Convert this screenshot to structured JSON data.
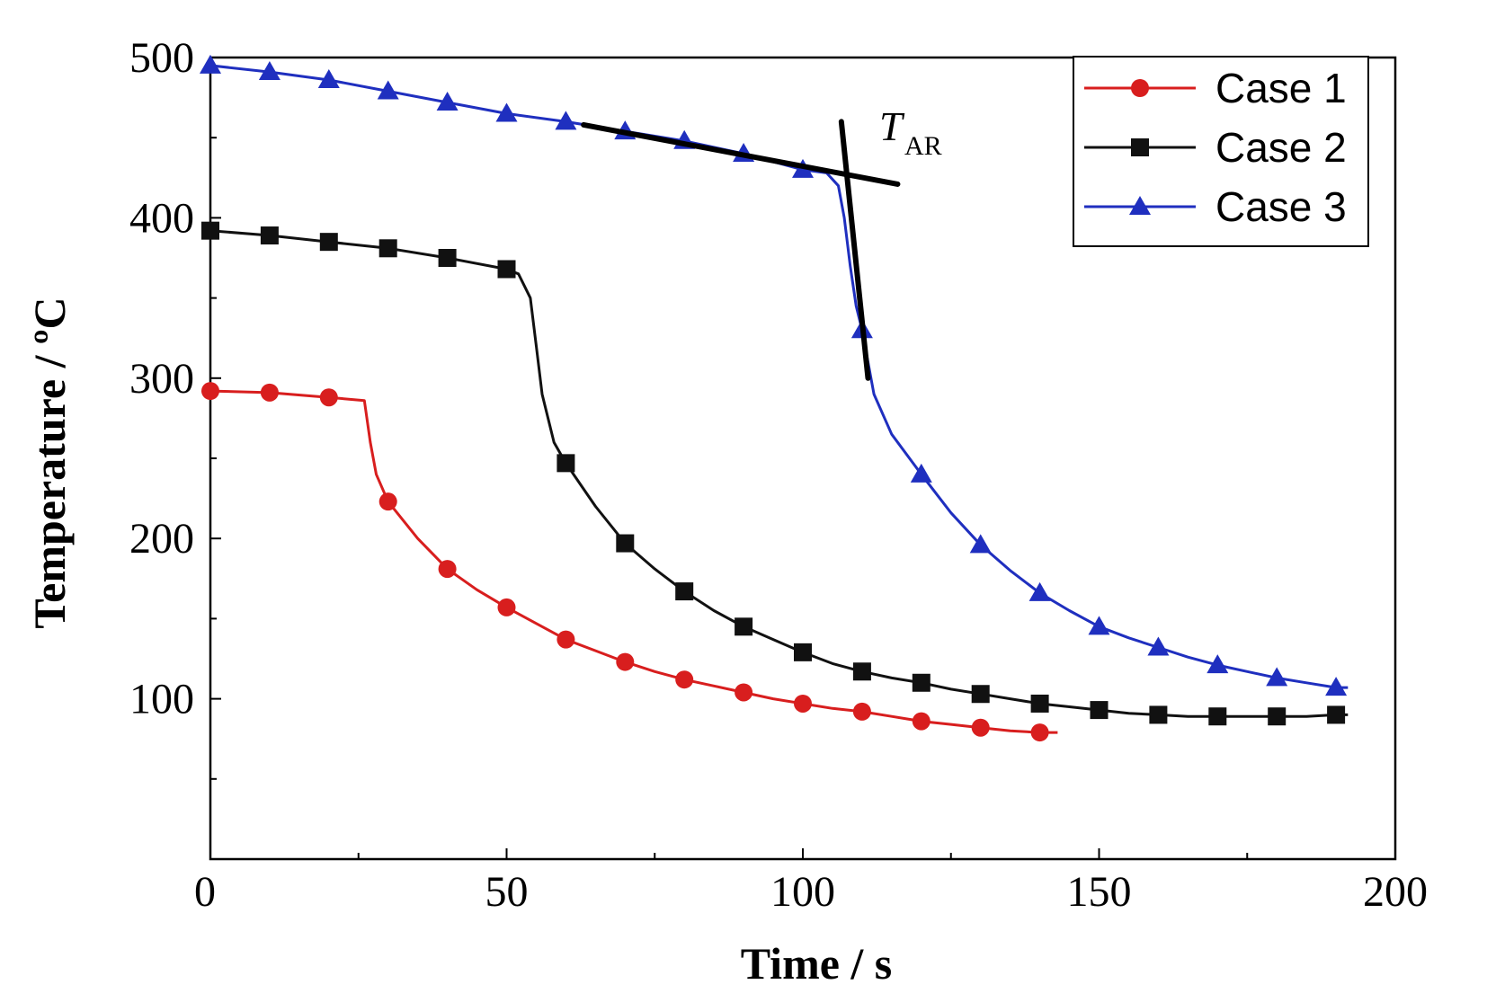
{
  "chart_data": {
    "type": "line",
    "title": "",
    "xlabel": "Time / s",
    "ylabel": "Temperature / ºC",
    "xlim": [
      0,
      200
    ],
    "ylim": [
      0,
      500
    ],
    "x_ticks": [
      0,
      50,
      100,
      150,
      200
    ],
    "y_ticks": [
      100,
      200,
      300,
      400,
      500
    ],
    "x_minor_step": 25,
    "y_minor_step": 50,
    "grid": false,
    "legend_position": "top-right",
    "annotation": {
      "text": "T",
      "subscript": "AR"
    },
    "tangent_lines": [
      [
        [
          63,
          458
        ],
        [
          116,
          421
        ]
      ],
      [
        [
          106.5,
          460
        ],
        [
          111,
          300
        ]
      ]
    ],
    "series": [
      {
        "name": "Case 1",
        "color": "#d81e1e",
        "marker": "circle",
        "markers_x": [
          0,
          10,
          20,
          30,
          40,
          50,
          60,
          70,
          80,
          90,
          100,
          110,
          120,
          130,
          140
        ],
        "points": [
          [
            0,
            292
          ],
          [
            10,
            291
          ],
          [
            20,
            288
          ],
          [
            26,
            286
          ],
          [
            27,
            260
          ],
          [
            28,
            240
          ],
          [
            30,
            223
          ],
          [
            35,
            200
          ],
          [
            40,
            181
          ],
          [
            45,
            168
          ],
          [
            50,
            157
          ],
          [
            55,
            147
          ],
          [
            60,
            137
          ],
          [
            65,
            130
          ],
          [
            70,
            123
          ],
          [
            75,
            117
          ],
          [
            80,
            112
          ],
          [
            85,
            108
          ],
          [
            90,
            104
          ],
          [
            95,
            100
          ],
          [
            100,
            97
          ],
          [
            105,
            94
          ],
          [
            110,
            92
          ],
          [
            115,
            89
          ],
          [
            120,
            86
          ],
          [
            125,
            84
          ],
          [
            130,
            82
          ],
          [
            135,
            80
          ],
          [
            140,
            79
          ],
          [
            143,
            79
          ]
        ]
      },
      {
        "name": "Case 2",
        "color": "#111111",
        "marker": "square",
        "markers_x": [
          0,
          10,
          20,
          30,
          40,
          50,
          60,
          70,
          80,
          90,
          100,
          110,
          120,
          130,
          140,
          150,
          160,
          170,
          180,
          190
        ],
        "points": [
          [
            0,
            392
          ],
          [
            10,
            389
          ],
          [
            20,
            385
          ],
          [
            30,
            381
          ],
          [
            40,
            375
          ],
          [
            50,
            368
          ],
          [
            52,
            365
          ],
          [
            54,
            350
          ],
          [
            55,
            320
          ],
          [
            56,
            290
          ],
          [
            58,
            260
          ],
          [
            60,
            247
          ],
          [
            65,
            220
          ],
          [
            70,
            197
          ],
          [
            75,
            181
          ],
          [
            80,
            167
          ],
          [
            85,
            155
          ],
          [
            90,
            145
          ],
          [
            95,
            137
          ],
          [
            100,
            129
          ],
          [
            105,
            122
          ],
          [
            110,
            117
          ],
          [
            115,
            113
          ],
          [
            120,
            110
          ],
          [
            125,
            106
          ],
          [
            130,
            103
          ],
          [
            135,
            100
          ],
          [
            140,
            97
          ],
          [
            145,
            95
          ],
          [
            150,
            93
          ],
          [
            155,
            91
          ],
          [
            160,
            90
          ],
          [
            165,
            89
          ],
          [
            170,
            89
          ],
          [
            175,
            89
          ],
          [
            180,
            89
          ],
          [
            185,
            89
          ],
          [
            190,
            90
          ],
          [
            192,
            90
          ]
        ]
      },
      {
        "name": "Case 3",
        "color": "#1f2fbf",
        "marker": "triangle",
        "markers_x": [
          0,
          10,
          20,
          30,
          40,
          50,
          60,
          70,
          80,
          90,
          100,
          110,
          120,
          130,
          140,
          150,
          160,
          170,
          180,
          190
        ],
        "points": [
          [
            0,
            495
          ],
          [
            10,
            491
          ],
          [
            20,
            486
          ],
          [
            30,
            479
          ],
          [
            40,
            472
          ],
          [
            50,
            465
          ],
          [
            60,
            460
          ],
          [
            70,
            454
          ],
          [
            80,
            448
          ],
          [
            90,
            440
          ],
          [
            100,
            430
          ],
          [
            104,
            428
          ],
          [
            106,
            420
          ],
          [
            107,
            400
          ],
          [
            108,
            370
          ],
          [
            109,
            345
          ],
          [
            110,
            330
          ],
          [
            112,
            290
          ],
          [
            115,
            265
          ],
          [
            120,
            240
          ],
          [
            125,
            216
          ],
          [
            130,
            196
          ],
          [
            135,
            180
          ],
          [
            140,
            166
          ],
          [
            145,
            155
          ],
          [
            150,
            145
          ],
          [
            155,
            138
          ],
          [
            160,
            132
          ],
          [
            165,
            126
          ],
          [
            170,
            121
          ],
          [
            175,
            117
          ],
          [
            180,
            113
          ],
          [
            185,
            110
          ],
          [
            190,
            107
          ],
          [
            192,
            107
          ]
        ]
      }
    ]
  }
}
